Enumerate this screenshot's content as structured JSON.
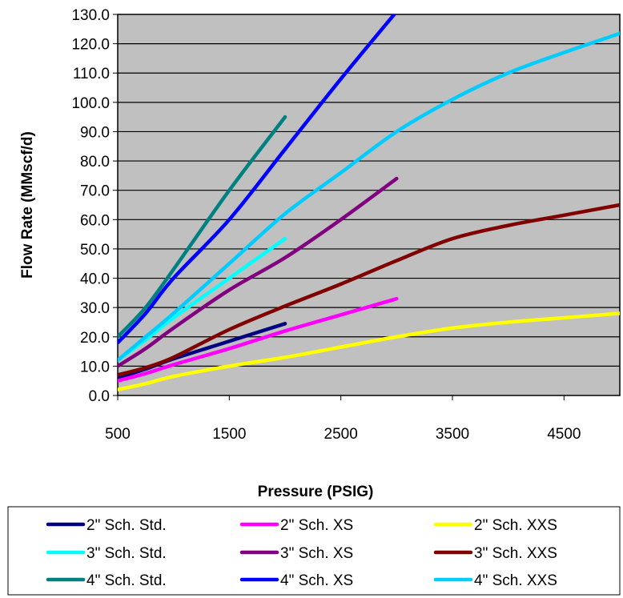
{
  "chart_data": {
    "type": "line",
    "title": "",
    "xlabel": "Pressure (PSIG)",
    "ylabel": "Flow Rate (MMscf/d)",
    "xlim": [
      500,
      5000
    ],
    "ylim": [
      0,
      130
    ],
    "xticks": [
      500,
      1500,
      2500,
      3500,
      4500
    ],
    "xtick_labels": [
      "500",
      "1500",
      "2500",
      "3500",
      "4500"
    ],
    "yticks": [
      0,
      10,
      20,
      30,
      40,
      50,
      60,
      70,
      80,
      90,
      100,
      110,
      120,
      130
    ],
    "ytick_labels": [
      "0.0",
      "10.0",
      "20.0",
      "30.0",
      "40.0",
      "50.0",
      "60.0",
      "70.0",
      "80.0",
      "90.0",
      "100.0",
      "110.0",
      "120.0",
      "130.0"
    ],
    "grid": "horizontal",
    "plot_background": "#c0c0c0",
    "legend_position": "bottom",
    "series": [
      {
        "name": "2\" Sch. Std.",
        "color": "#000080",
        "x": [
          500,
          750,
          1000,
          1500,
          2000
        ],
        "y": [
          6,
          9,
          12.5,
          18.5,
          24.5
        ]
      },
      {
        "name": "2\" Sch. XS",
        "color": "#ff00ff",
        "x": [
          500,
          750,
          1000,
          1500,
          2000,
          2500,
          3000
        ],
        "y": [
          5,
          7.5,
          10.5,
          16,
          22,
          27.5,
          33
        ]
      },
      {
        "name": "2\" Sch. XXS",
        "color": "#ffff00",
        "x": [
          500,
          750,
          1000,
          1500,
          2000,
          2500,
          3000,
          3500,
          4000,
          4500,
          5000
        ],
        "y": [
          2,
          4,
          6.5,
          10,
          13,
          16.5,
          20,
          23,
          25,
          26.5,
          28
        ]
      },
      {
        "name": "3\" Sch. Std.",
        "color": "#00ffff",
        "x": [
          500,
          750,
          1000,
          1500,
          2000
        ],
        "y": [
          12,
          19,
          26.5,
          40,
          53.5
        ]
      },
      {
        "name": "3\" Sch. XS",
        "color": "#800080",
        "x": [
          500,
          750,
          1000,
          1500,
          2000,
          2500,
          3000
        ],
        "y": [
          10,
          16,
          23,
          36,
          47,
          60,
          74
        ]
      },
      {
        "name": "3\" Sch. XXS",
        "color": "#800000",
        "x": [
          500,
          750,
          1000,
          1500,
          2000,
          2500,
          3000,
          3500,
          4000,
          4500,
          5000
        ],
        "y": [
          7,
          9.5,
          13,
          22.5,
          30.5,
          38,
          46,
          53.5,
          58,
          61.5,
          65
        ]
      },
      {
        "name": "4\" Sch. Std.",
        "color": "#008080",
        "x": [
          500,
          750,
          1000,
          1500,
          2000
        ],
        "y": [
          20,
          30,
          43,
          70,
          95
        ]
      },
      {
        "name": "4\" Sch. XS",
        "color": "#0000ff",
        "x": [
          500,
          750,
          1000,
          1500,
          2000,
          2500,
          3000
        ],
        "y": [
          18,
          28,
          40,
          60,
          84,
          108,
          131
        ]
      },
      {
        "name": "4\" Sch. XXS",
        "color": "#00ccff",
        "x": [
          500,
          750,
          1000,
          1500,
          2000,
          2500,
          3000,
          3500,
          4000,
          4500,
          5000
        ],
        "y": [
          12,
          20,
          28,
          45,
          62,
          76,
          90,
          101,
          110,
          117,
          123.5
        ]
      }
    ]
  }
}
